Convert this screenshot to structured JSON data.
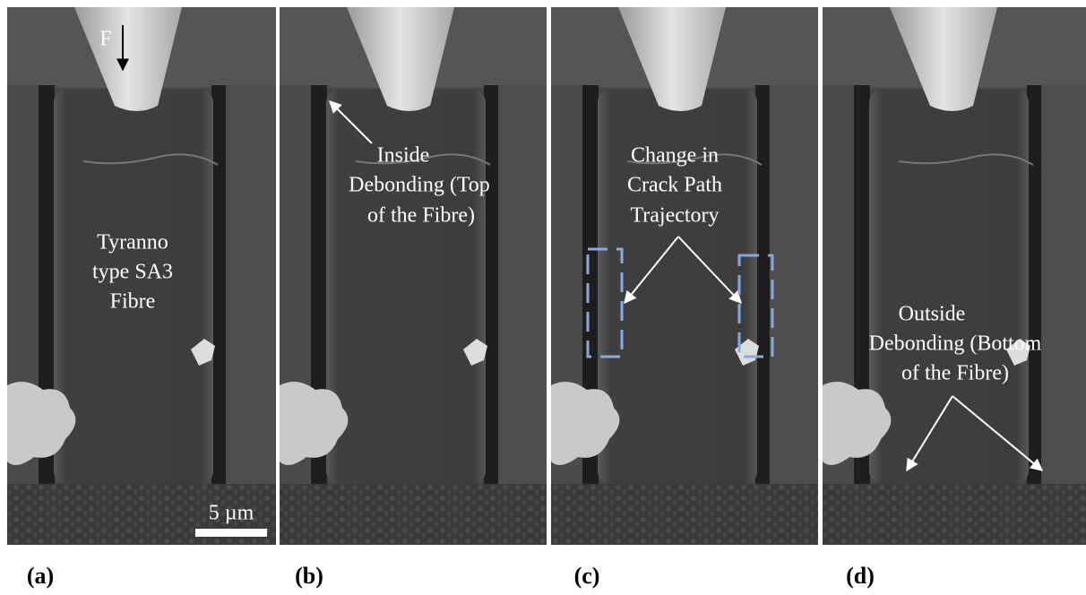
{
  "panels": [
    {
      "label": "(a)",
      "force": "F",
      "annotation": [
        "Tyranno",
        "type SA3",
        "Fibre"
      ],
      "scale_bar": "5 µm"
    },
    {
      "label": "(b)",
      "annotation": [
        "Inside",
        "Debonding (Top",
        "of the Fibre)"
      ]
    },
    {
      "label": "(c)",
      "annotation": [
        "Change in",
        "Crack Path",
        "Trajectory"
      ]
    },
    {
      "label": "(d)",
      "annotation": [
        "Outside",
        "Debonding (Bottom",
        "of the Fibre)"
      ]
    }
  ]
}
